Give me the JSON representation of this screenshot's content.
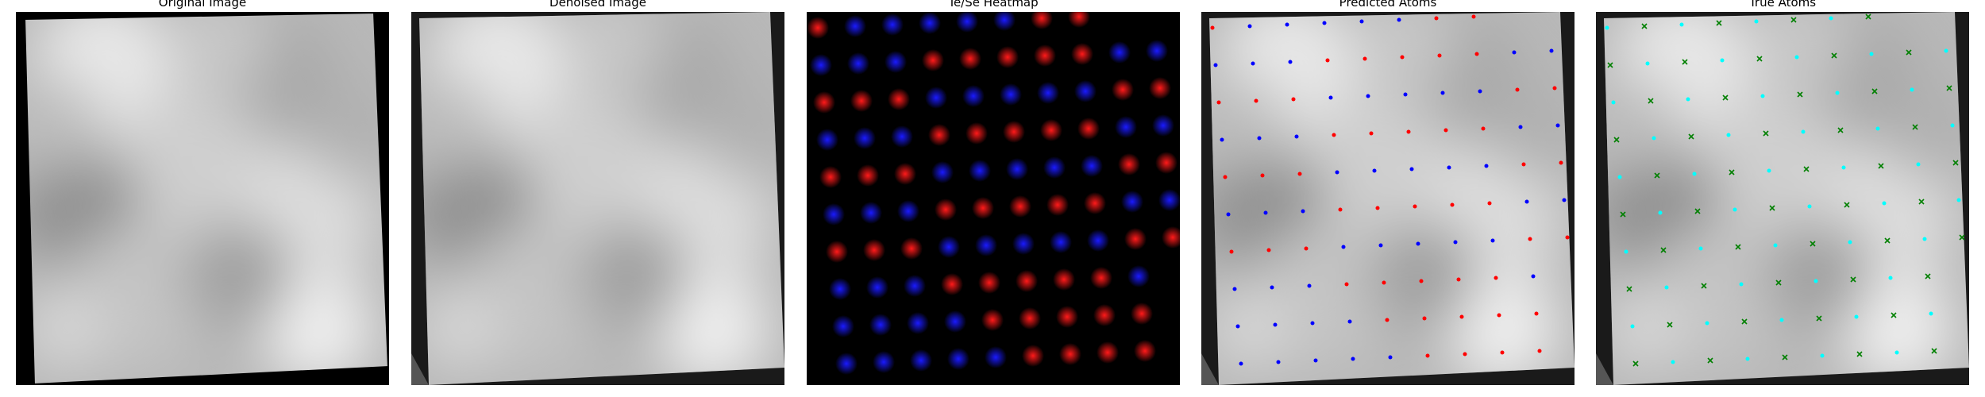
{
  "panels": [
    {
      "id": "original",
      "title": "Original Image"
    },
    {
      "id": "denoised",
      "title": "Denoised Image"
    },
    {
      "id": "heatmap",
      "title": "Te/Se Heatmap"
    },
    {
      "id": "predicted",
      "title": "Predicted Atoms"
    },
    {
      "id": "true",
      "title": "True Atoms"
    }
  ],
  "colors": {
    "background": "#000000",
    "image_base": "#b8b8b8",
    "te_heat": "#ff1a1a",
    "se_heat": "#1a1aff",
    "pred_te": "#ff0000",
    "pred_se": "#0000ff",
    "true_te": "#00ffff",
    "true_se": "#008000"
  },
  "icons": {
    "true_te_marker": "dot",
    "true_se_marker": "x-cross"
  }
}
